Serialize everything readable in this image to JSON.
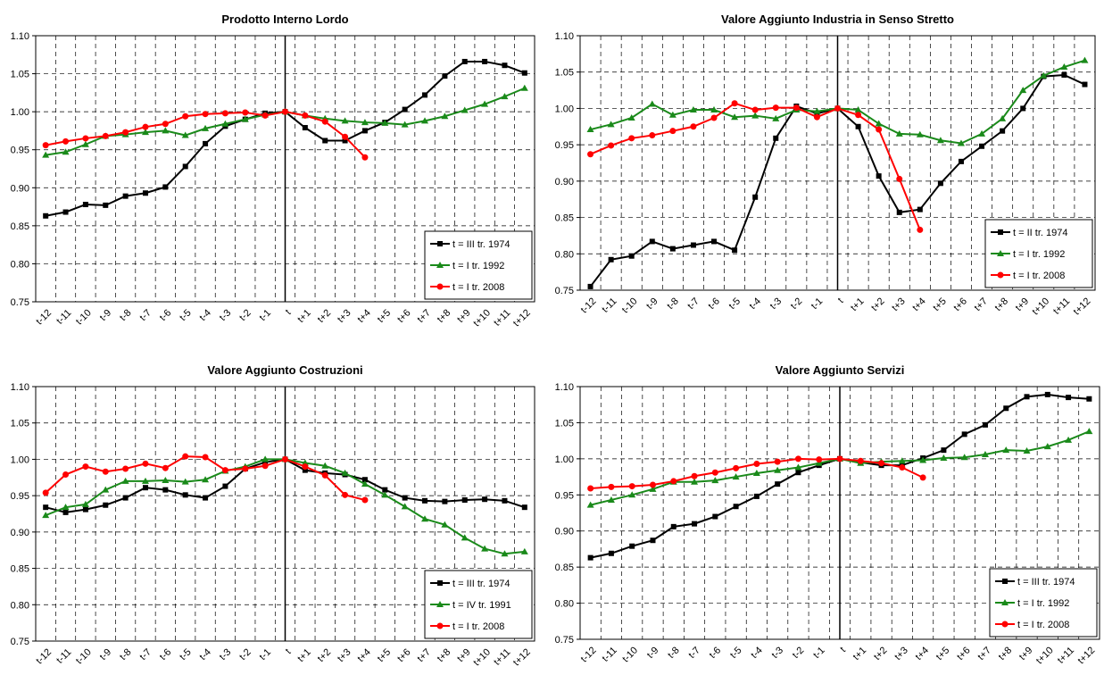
{
  "chart_data": [
    {
      "type": "line",
      "title": "Prodotto Interno Lordo",
      "categories": [
        "t-12",
        "t-11",
        "t-10",
        "t-9",
        "t-8",
        "t-7",
        "t-6",
        "t-5",
        "t-4",
        "t-3",
        "t-2",
        "t-1",
        "t",
        "t+1",
        "t+2",
        "t+3",
        "t+4",
        "t+5",
        "t+6",
        "t+7",
        "t+8",
        "t+9",
        "t+10",
        "t+11",
        "t+12"
      ],
      "series": [
        {
          "name": "t = III tr. 1974",
          "color": "#000000",
          "marker": "square",
          "values": [
            0.863,
            0.868,
            0.878,
            0.877,
            0.889,
            0.893,
            0.901,
            0.928,
            0.958,
            0.981,
            0.99,
            0.998,
            1.0,
            0.979,
            0.962,
            0.962,
            0.975,
            0.986,
            1.003,
            1.022,
            1.047,
            1.066,
            1.066,
            1.061,
            1.051
          ]
        },
        {
          "name": "t = I tr. 1992",
          "color": "#1a8a1a",
          "marker": "triangle",
          "values": [
            0.943,
            0.947,
            0.957,
            0.968,
            0.97,
            0.973,
            0.975,
            0.969,
            0.978,
            0.984,
            0.99,
            0.996,
            1.0,
            0.995,
            0.991,
            0.988,
            0.986,
            0.985,
            0.983,
            0.988,
            0.994,
            1.002,
            1.01,
            1.02,
            1.031
          ]
        },
        {
          "name": "t = I tr. 2008",
          "color": "#ff0000",
          "marker": "circle",
          "values": [
            0.956,
            0.961,
            0.965,
            0.968,
            0.973,
            0.98,
            0.984,
            0.994,
            0.997,
            0.998,
            0.999,
            0.995,
            1.0,
            0.995,
            0.987,
            0.967,
            0.94,
            null,
            null,
            null,
            null,
            null,
            null,
            null,
            null
          ]
        }
      ],
      "ylim": [
        0.75,
        1.1
      ],
      "yticks": [
        0.75,
        {
          "value": 0.8,
          "label": "0.80"
        },
        0.85,
        {
          "value": 0.9,
          "label": "0.90"
        },
        0.95,
        {
          "value": 1.0,
          "label": "1.00"
        },
        1.05,
        {
          "value": 1.1,
          "label": "1.10"
        }
      ],
      "grid": true,
      "legend": "lower right"
    },
    {
      "type": "line",
      "title": "Valore Aggiunto Industria in Senso Stretto",
      "categories": [
        "t-12",
        "t-11",
        "t-10",
        "t-9",
        "t-8",
        "t-7",
        "t-6",
        "t-5",
        "t-4",
        "t-3",
        "t-2",
        "t-1",
        "t",
        "t+1",
        "t+2",
        "t+3",
        "t+4",
        "t+5",
        "t+6",
        "t+7",
        "t+8",
        "t+9",
        "t+10",
        "t+11",
        "t+12"
      ],
      "series": [
        {
          "name": "t = II tr. 1974",
          "color": "#000000",
          "marker": "square",
          "values": [
            0.755,
            0.792,
            0.797,
            0.817,
            0.807,
            0.812,
            0.817,
            0.805,
            0.878,
            0.959,
            1.003,
            0.993,
            1.0,
            0.975,
            0.907,
            0.857,
            0.861,
            0.897,
            0.927,
            0.948,
            0.969,
            1.0,
            1.044,
            1.046,
            1.033
          ]
        },
        {
          "name": "t = I tr. 1992",
          "color": "#1a8a1a",
          "marker": "triangle",
          "values": [
            0.971,
            0.978,
            0.987,
            1.006,
            0.991,
            0.998,
            0.998,
            0.988,
            0.99,
            0.986,
            0.998,
            0.996,
            1.0,
            0.998,
            0.979,
            0.965,
            0.964,
            0.956,
            0.952,
            0.965,
            0.986,
            1.025,
            1.045,
            1.057,
            1.066
          ]
        },
        {
          "name": "t = I tr. 2008",
          "color": "#ff0000",
          "marker": "circle",
          "values": [
            0.937,
            0.949,
            0.959,
            0.963,
            0.969,
            0.975,
            0.987,
            1.007,
            0.998,
            1.001,
            1.001,
            0.988,
            1.0,
            0.991,
            0.971,
            0.903,
            0.833,
            null,
            null,
            null,
            null,
            null,
            null,
            null,
            null
          ]
        }
      ],
      "ylim": [
        0.75,
        1.1
      ],
      "yticks": [
        0.75,
        {
          "value": 0.8,
          "label": "0.80"
        },
        0.85,
        {
          "value": 0.9,
          "label": "0.90"
        },
        0.95,
        {
          "value": 1.0,
          "label": "1.00"
        },
        1.05,
        {
          "value": 1.1,
          "label": "1.10"
        }
      ],
      "grid": true,
      "legend": "lower right"
    },
    {
      "type": "line",
      "title": "Valore Aggiunto Costruzioni",
      "categories": [
        "t-12",
        "t-11",
        "t-10",
        "t-9",
        "t-8",
        "t-7",
        "t-6",
        "t-5",
        "t-4",
        "t-3",
        "t-2",
        "t-1",
        "t",
        "t+1",
        "t+2",
        "t+3",
        "t+4",
        "t+5",
        "t+6",
        "t+7",
        "t+8",
        "t+9",
        "t+10",
        "t+11",
        "t+12"
      ],
      "series": [
        {
          "name": "t = III tr. 1974",
          "color": "#000000",
          "marker": "square",
          "values": [
            0.934,
            0.927,
            0.931,
            0.937,
            0.947,
            0.961,
            0.958,
            0.951,
            0.947,
            0.963,
            0.987,
            0.996,
            1.0,
            0.985,
            0.981,
            0.979,
            0.972,
            0.958,
            0.947,
            0.943,
            0.942,
            0.944,
            0.945,
            0.943,
            0.934
          ]
        },
        {
          "name": "t = IV tr. 1991",
          "color": "#1a8a1a",
          "marker": "triangle",
          "values": [
            0.923,
            0.934,
            0.938,
            0.958,
            0.97,
            0.97,
            0.971,
            0.969,
            0.972,
            0.984,
            0.99,
            1.0,
            1.0,
            0.995,
            0.991,
            0.981,
            0.966,
            0.951,
            0.935,
            0.918,
            0.91,
            0.892,
            0.877,
            0.87,
            0.873
          ]
        },
        {
          "name": "t = I tr. 2008",
          "color": "#ff0000",
          "marker": "circle",
          "values": [
            0.954,
            0.979,
            0.99,
            0.983,
            0.987,
            0.994,
            0.988,
            1.004,
            1.003,
            0.985,
            0.987,
            0.991,
            1.0,
            0.99,
            0.978,
            0.951,
            0.944,
            null,
            null,
            null,
            null,
            null,
            null,
            null,
            null
          ]
        }
      ],
      "ylim": [
        0.75,
        1.1
      ],
      "yticks": [
        0.75,
        {
          "value": 0.8,
          "label": "0.80"
        },
        0.85,
        {
          "value": 0.9,
          "label": "0.90"
        },
        0.95,
        {
          "value": 1.0,
          "label": "1.00"
        },
        1.05,
        {
          "value": 1.1,
          "label": "1.10"
        }
      ],
      "grid": true,
      "legend": "lower right"
    },
    {
      "type": "line",
      "title": "Valore Aggiunto Servizi",
      "categories": [
        "t-12",
        "t-11",
        "t-10",
        "t-9",
        "t-8",
        "t-7",
        "t-6",
        "t-5",
        "t-4",
        "t-3",
        "t-2",
        "t-1",
        "t",
        "t+1",
        "t+2",
        "t+3",
        "t+4",
        "t+5",
        "t+6",
        "t+7",
        "t+8",
        "t+9",
        "t+10",
        "t+11",
        "t+12"
      ],
      "series": [
        {
          "name": "t = III tr. 1974",
          "color": "#000000",
          "marker": "square",
          "values": [
            0.863,
            0.869,
            0.879,
            0.887,
            0.906,
            0.91,
            0.92,
            0.934,
            0.948,
            0.965,
            0.981,
            0.991,
            1.0,
            0.995,
            0.991,
            0.991,
            1.001,
            1.012,
            1.034,
            1.047,
            1.07,
            1.086,
            1.089,
            1.085,
            1.083
          ]
        },
        {
          "name": "t = I tr. 1992",
          "color": "#1a8a1a",
          "marker": "triangle",
          "values": [
            0.936,
            0.943,
            0.95,
            0.958,
            0.968,
            0.968,
            0.97,
            0.975,
            0.98,
            0.984,
            0.988,
            0.994,
            1.0,
            0.994,
            0.996,
            0.997,
            0.998,
            1.001,
            1.002,
            1.006,
            1.012,
            1.011,
            1.017,
            1.026,
            1.038
          ]
        },
        {
          "name": "t = I tr. 2008",
          "color": "#ff0000",
          "marker": "circle",
          "values": [
            0.959,
            0.961,
            0.962,
            0.964,
            0.969,
            0.976,
            0.981,
            0.987,
            0.993,
            0.996,
            1.0,
            0.999,
            1.0,
            0.997,
            0.994,
            0.988,
            0.974,
            null,
            null,
            null,
            null,
            null,
            null,
            null,
            null
          ]
        }
      ],
      "ylim": [
        0.75,
        1.1
      ],
      "yticks": [
        0.75,
        {
          "value": 0.8,
          "label": "0.80"
        },
        0.85,
        {
          "value": 0.9,
          "label": "0.90"
        },
        0.95,
        {
          "value": 1.0,
          "label": "1.00"
        },
        1.05,
        {
          "value": 1.1,
          "label": "1.10"
        }
      ],
      "grid": true,
      "legend": "lower right"
    }
  ]
}
